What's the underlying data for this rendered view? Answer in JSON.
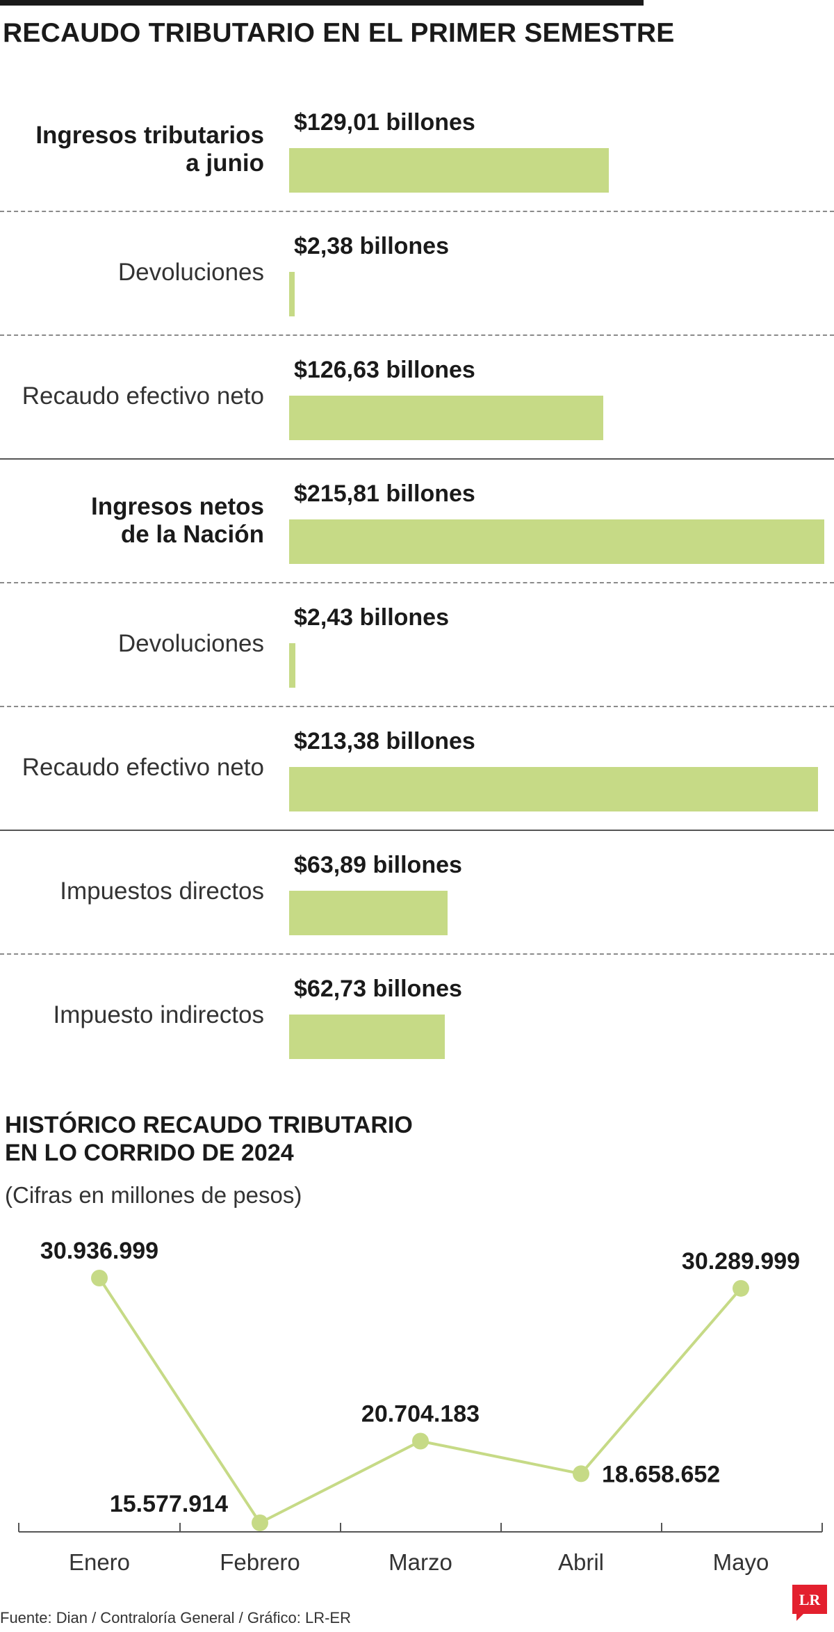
{
  "title": "RECAUDO TRIBUTARIO EN EL PRIMER SEMESTRE",
  "colors": {
    "bar": "#c6da86",
    "line": "#c6da86",
    "text": "#1a1a1a",
    "separator": "#8a8a8a"
  },
  "bars": [
    {
      "label": "Ingresos tributarios\na junio",
      "bold": true,
      "value": 129.01,
      "value_label": "$129,01 billones",
      "separator_after": "dashed"
    },
    {
      "label": "Devoluciones",
      "bold": false,
      "value": 2.38,
      "value_label": "$2,38 billones",
      "separator_after": "dashed"
    },
    {
      "label": "Recaudo efectivo neto",
      "bold": false,
      "value": 126.63,
      "value_label": "$126,63 billones",
      "separator_after": "solid"
    },
    {
      "label": "Ingresos netos\nde la Nación",
      "bold": true,
      "value": 215.81,
      "value_label": "$215,81 billones",
      "separator_after": "dashed"
    },
    {
      "label": "Devoluciones",
      "bold": false,
      "value": 2.43,
      "value_label": "$2,43 billones",
      "separator_after": "dashed"
    },
    {
      "label": "Recaudo efectivo neto",
      "bold": false,
      "value": 213.38,
      "value_label": "$213,38 billones",
      "separator_after": "solid"
    },
    {
      "label": "Impuestos directos",
      "bold": false,
      "value": 63.89,
      "value_label": "$63,89 billones",
      "separator_after": "dashed"
    },
    {
      "label": "Impuesto indirectos",
      "bold": false,
      "value": 62.73,
      "value_label": "$62,73 billones",
      "separator_after": "none"
    }
  ],
  "line_section": {
    "title": "HISTÓRICO RECAUDO TRIBUTARIO\nEN LO CORRIDO DE 2024",
    "note": "(Cifras en millones de pesos)"
  },
  "chart_data": [
    {
      "type": "bar",
      "orientation": "horizontal",
      "title": "RECAUDO TRIBUTARIO EN EL PRIMER SEMESTRE",
      "categories": [
        "Ingresos tributarios a junio",
        "Devoluciones",
        "Recaudo efectivo neto",
        "Ingresos netos de la Nación",
        "Devoluciones",
        "Recaudo efectivo neto",
        "Impuestos directos",
        "Impuesto indirectos"
      ],
      "values": [
        129.01,
        2.38,
        126.63,
        215.81,
        2.43,
        213.38,
        63.89,
        62.73
      ],
      "unit": "billones",
      "xlim": [
        0,
        215.81
      ]
    },
    {
      "type": "line",
      "title": "HISTÓRICO RECAUDO TRIBUTARIO EN LO CORRIDO DE 2024",
      "subtitle": "(Cifras en millones de pesos)",
      "categories": [
        "Enero",
        "Febrero",
        "Marzo",
        "Abril",
        "Mayo"
      ],
      "values": [
        30936999,
        15577914,
        20704183,
        18658652,
        30289999
      ],
      "value_labels": [
        "30.936.999",
        "15.577.914",
        "20.704.183",
        "18.658.652",
        "30.289.999"
      ],
      "label_placement": [
        "above",
        "left",
        "above",
        "right",
        "above"
      ],
      "ylim": [
        15577914,
        30936999
      ],
      "grid": false
    }
  ],
  "source": "Fuente: Dian / Contraloría General / Gráfico: LR-ER",
  "logo_text": "LR",
  "logo_icon": "lr-logo-icon"
}
